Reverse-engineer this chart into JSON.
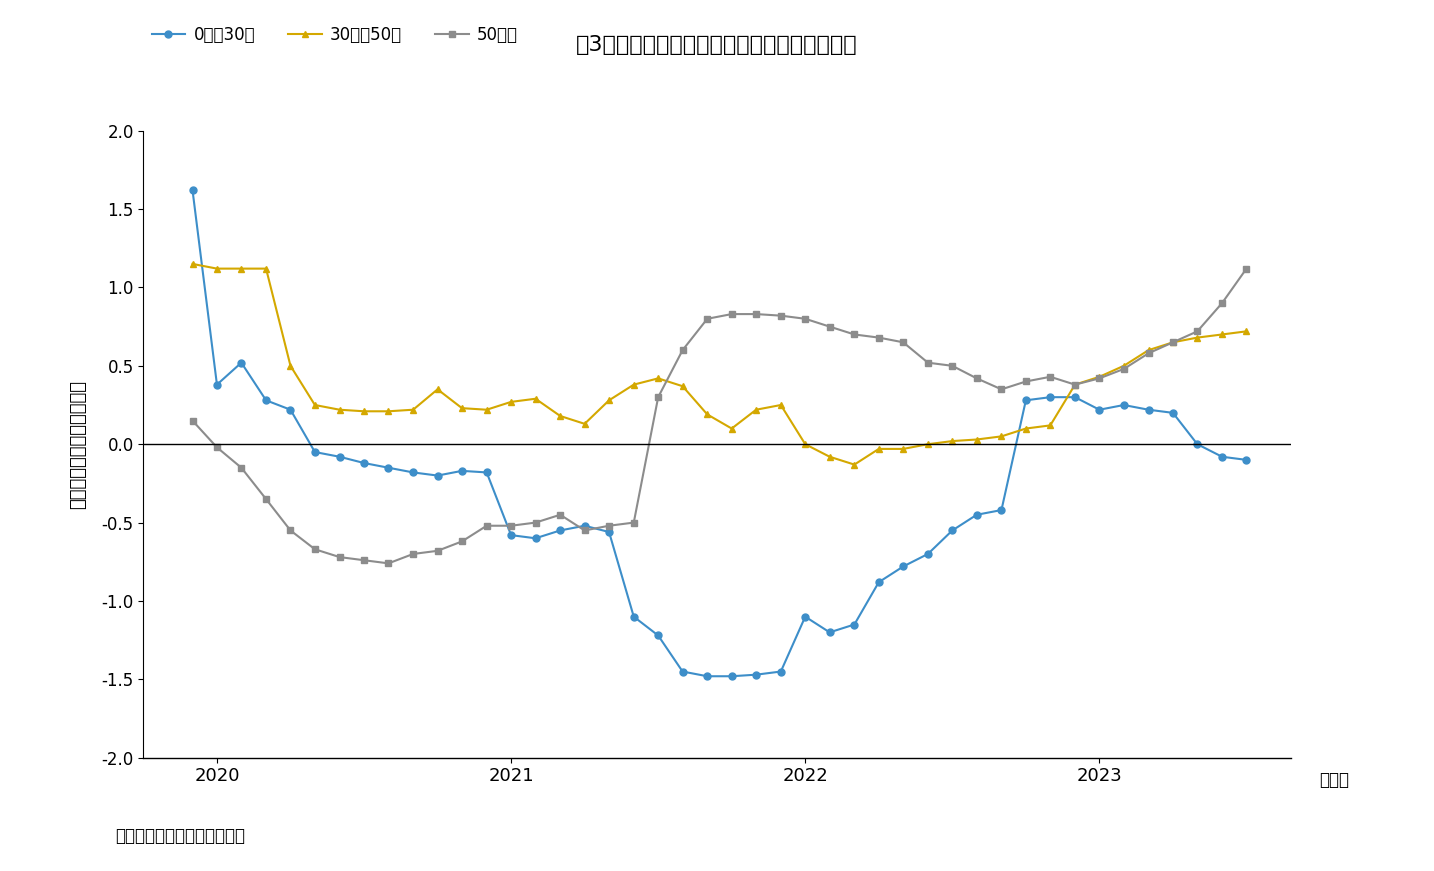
{
  "title": "図3　日本の賃貸住宅の賃貸面積別賃料変化率",
  "ylabel": "賃料変動率（％，前年比）",
  "xlabel_note": "（年）",
  "source": "出所：　日本情報クリエイト",
  "legend_labels": [
    "0㎡～30㎡",
    "30㎡～50㎡",
    "50㎡～"
  ],
  "colors": [
    "#3d8ec9",
    "#d4a800",
    "#8c8c8c"
  ],
  "markers": [
    "o",
    "^",
    "s"
  ],
  "ylim": [
    -2.0,
    2.0
  ],
  "yticks": [
    -2.0,
    -1.5,
    -1.0,
    -0.5,
    0.0,
    0.5,
    1.0,
    1.5,
    2.0
  ],
  "background_color": "#ffffff",
  "series_0m_30m": {
    "x": [
      2019.917,
      2020.0,
      2020.083,
      2020.167,
      2020.25,
      2020.333,
      2020.417,
      2020.5,
      2020.583,
      2020.667,
      2020.75,
      2020.833,
      2020.917,
      2021.0,
      2021.083,
      2021.167,
      2021.25,
      2021.333,
      2021.417,
      2021.5,
      2021.583,
      2021.667,
      2021.75,
      2021.833,
      2021.917,
      2022.0,
      2022.083,
      2022.167,
      2022.25,
      2022.333,
      2022.417,
      2022.5,
      2022.583,
      2022.667,
      2022.75,
      2022.833,
      2022.917,
      2023.0,
      2023.083,
      2023.167,
      2023.25,
      2023.333,
      2023.417,
      2023.5
    ],
    "y": [
      1.62,
      0.38,
      0.52,
      0.28,
      0.22,
      -0.05,
      -0.08,
      -0.12,
      -0.15,
      -0.18,
      -0.2,
      -0.17,
      -0.18,
      -0.58,
      -0.6,
      -0.55,
      -0.52,
      -0.56,
      -1.1,
      -1.22,
      -1.45,
      -1.48,
      -1.48,
      -1.47,
      -1.45,
      -1.1,
      -1.2,
      -1.15,
      -0.88,
      -0.78,
      -0.7,
      -0.55,
      -0.45,
      -0.42,
      0.28,
      0.3,
      0.3,
      0.22,
      0.25,
      0.22,
      0.2,
      0.0,
      -0.08,
      -0.1
    ]
  },
  "series_30m_50m": {
    "x": [
      2019.917,
      2020.0,
      2020.083,
      2020.167,
      2020.25,
      2020.333,
      2020.417,
      2020.5,
      2020.583,
      2020.667,
      2020.75,
      2020.833,
      2020.917,
      2021.0,
      2021.083,
      2021.167,
      2021.25,
      2021.333,
      2021.417,
      2021.5,
      2021.583,
      2021.667,
      2021.75,
      2021.833,
      2021.917,
      2022.0,
      2022.083,
      2022.167,
      2022.25,
      2022.333,
      2022.417,
      2022.5,
      2022.583,
      2022.667,
      2022.75,
      2022.833,
      2022.917,
      2023.0,
      2023.083,
      2023.167,
      2023.25,
      2023.333,
      2023.417,
      2023.5
    ],
    "y": [
      1.15,
      1.12,
      1.12,
      1.12,
      0.5,
      0.25,
      0.22,
      0.21,
      0.21,
      0.22,
      0.35,
      0.23,
      0.22,
      0.27,
      0.29,
      0.18,
      0.13,
      0.28,
      0.38,
      0.42,
      0.37,
      0.19,
      0.1,
      0.22,
      0.25,
      0.0,
      -0.08,
      -0.13,
      -0.03,
      -0.03,
      0.0,
      0.02,
      0.03,
      0.05,
      0.1,
      0.12,
      0.38,
      0.43,
      0.5,
      0.6,
      0.65,
      0.68,
      0.7,
      0.72
    ]
  },
  "series_50m": {
    "x": [
      2019.917,
      2020.0,
      2020.083,
      2020.167,
      2020.25,
      2020.333,
      2020.417,
      2020.5,
      2020.583,
      2020.667,
      2020.75,
      2020.833,
      2020.917,
      2021.0,
      2021.083,
      2021.167,
      2021.25,
      2021.333,
      2021.417,
      2021.5,
      2021.583,
      2021.667,
      2021.75,
      2021.833,
      2021.917,
      2022.0,
      2022.083,
      2022.167,
      2022.25,
      2022.333,
      2022.417,
      2022.5,
      2022.583,
      2022.667,
      2022.75,
      2022.833,
      2022.917,
      2023.0,
      2023.083,
      2023.167,
      2023.25,
      2023.333,
      2023.417,
      2023.5
    ],
    "y": [
      0.15,
      -0.02,
      -0.15,
      -0.35,
      -0.55,
      -0.67,
      -0.72,
      -0.74,
      -0.76,
      -0.7,
      -0.68,
      -0.62,
      -0.52,
      -0.52,
      -0.5,
      -0.45,
      -0.55,
      -0.52,
      -0.5,
      0.3,
      0.6,
      0.8,
      0.83,
      0.83,
      0.82,
      0.8,
      0.75,
      0.7,
      0.68,
      0.65,
      0.52,
      0.5,
      0.42,
      0.35,
      0.4,
      0.43,
      0.38,
      0.42,
      0.48,
      0.58,
      0.65,
      0.72,
      0.9,
      1.12
    ]
  }
}
